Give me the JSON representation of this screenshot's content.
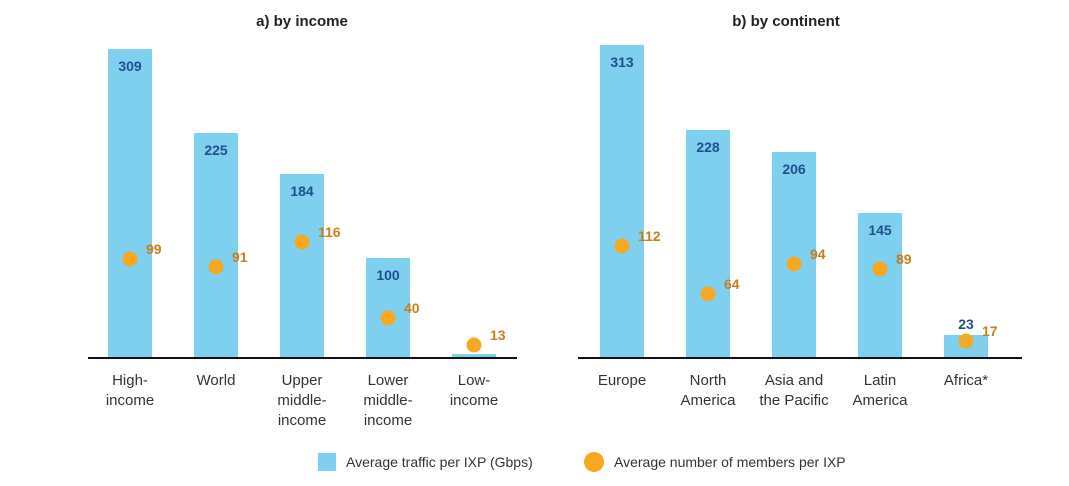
{
  "colors": {
    "bar": "#7fcfee",
    "dot": "#f7a823",
    "bar_label": "#1f4f8f",
    "dot_label": "#c77e1c",
    "axis": "#111111"
  },
  "chart_data": [
    {
      "type": "bar",
      "title": "a) by income",
      "categories": [
        "High-\nincome",
        "World",
        "Upper\nmiddle-\nincome",
        "Lower\nmiddle-\nincome",
        "Low-\nincome"
      ],
      "series": [
        {
          "name": "Average traffic per IXP (Gbps)",
          "kind": "bar",
          "values": [
            309,
            225,
            184,
            100,
            4
          ]
        },
        {
          "name": "Average number of members per IXP",
          "kind": "scatter",
          "values": [
            99,
            91,
            116,
            40,
            13
          ]
        }
      ],
      "ylim": [
        0,
        340
      ],
      "xlabel": "",
      "ylabel": ""
    },
    {
      "type": "bar",
      "title": "b) by continent",
      "categories": [
        "Europe",
        "North\nAmerica",
        "Asia and\nthe Pacific",
        "Latin\nAmerica",
        "Africa*"
      ],
      "series": [
        {
          "name": "Average traffic per IXP (Gbps)",
          "kind": "bar",
          "values": [
            313,
            228,
            206,
            145,
            23
          ]
        },
        {
          "name": "Average number of members per IXP",
          "kind": "scatter",
          "values": [
            112,
            64,
            94,
            89,
            17
          ]
        }
      ],
      "ylim": [
        0,
        340
      ],
      "xlabel": "",
      "ylabel": ""
    }
  ],
  "legend": {
    "bar_label": "Average traffic per IXP (Gbps)",
    "dot_label": "Average number of members per IXP"
  }
}
